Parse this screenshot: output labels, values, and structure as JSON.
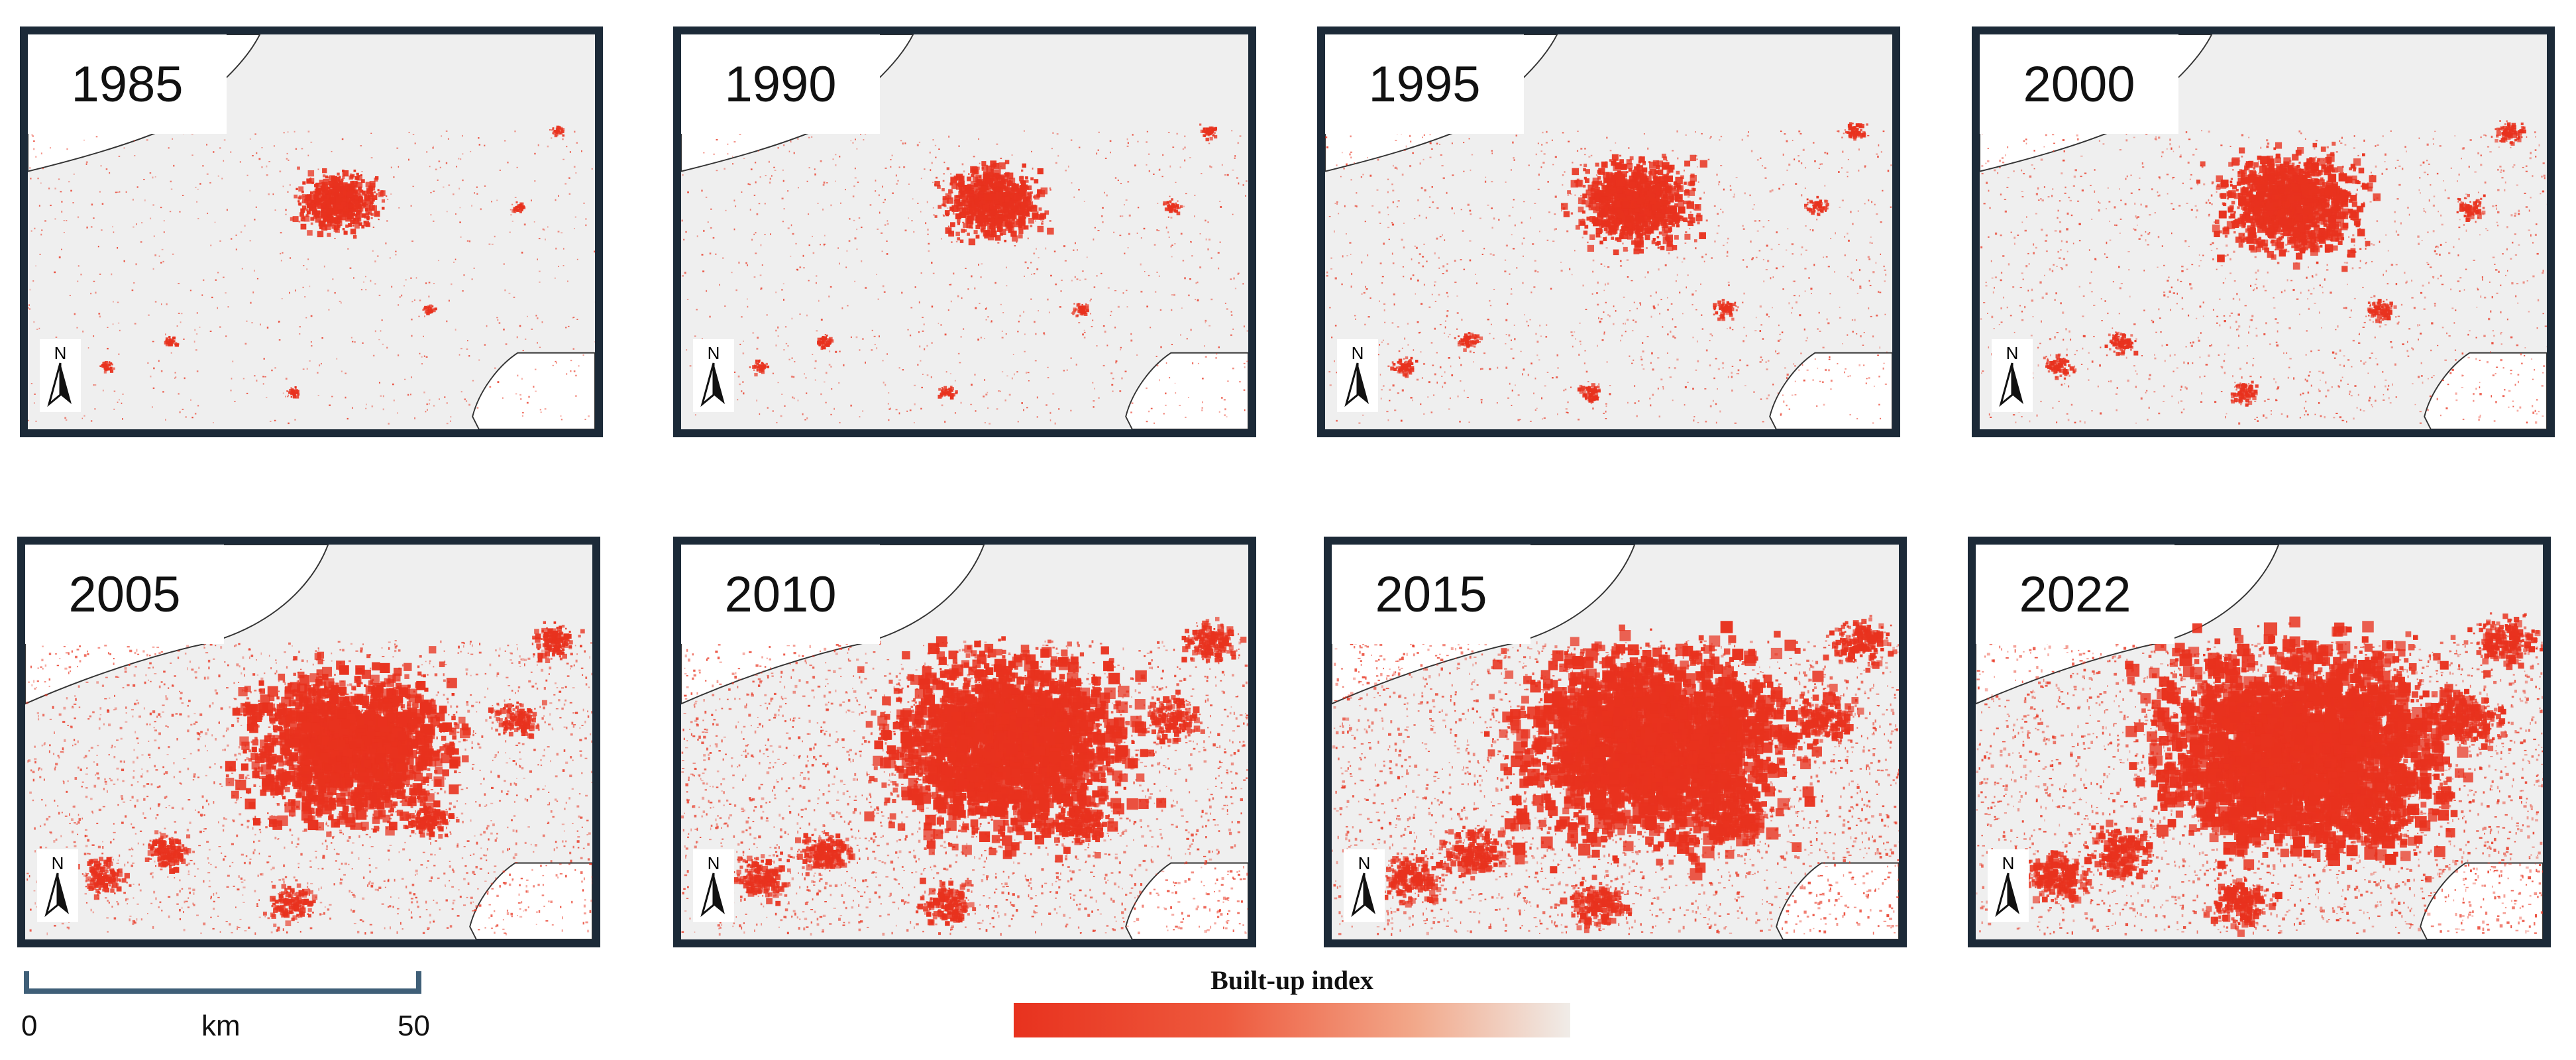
{
  "panels": [
    {
      "year": "1985",
      "north_label": "N",
      "builtup_level": 0.08
    },
    {
      "year": "1990",
      "north_label": "N",
      "builtup_level": 0.14
    },
    {
      "year": "1995",
      "north_label": "N",
      "builtup_level": 0.22
    },
    {
      "year": "2000",
      "north_label": "N",
      "builtup_level": 0.3
    },
    {
      "year": "2005",
      "north_label": "N",
      "builtup_level": 0.55
    },
    {
      "year": "2010",
      "north_label": "N",
      "builtup_level": 0.68
    },
    {
      "year": "2015",
      "north_label": "N",
      "builtup_level": 0.78
    },
    {
      "year": "2022",
      "north_label": "N",
      "builtup_level": 0.85
    }
  ],
  "scale_bar": {
    "start_label": "0",
    "unit_label": "km",
    "end_label": "50"
  },
  "legend": {
    "title": "Built-up index",
    "ramp_colors": [
      "#e8321e",
      "#ee5a3e",
      "#f2a88a",
      "#f0ece8"
    ]
  },
  "colors": {
    "builtup": "#e8321e",
    "background": "#efefef",
    "frame": "#1c2a38",
    "scale": "#3f5f78"
  }
}
